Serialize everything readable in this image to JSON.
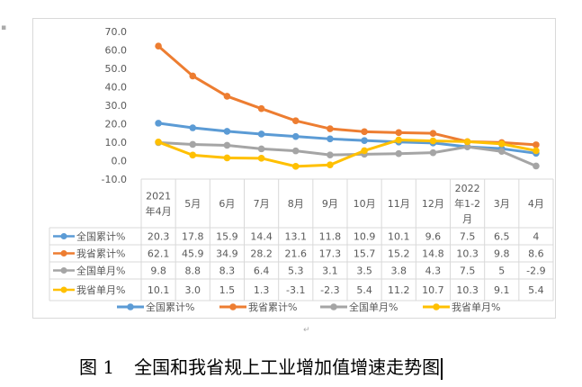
{
  "chart_data": {
    "type": "line",
    "title": "",
    "categories": [
      "2021年4月",
      "5月",
      "6月",
      "7月",
      "8月",
      "9月",
      "10月",
      "11月",
      "12月",
      "2022年1-2月",
      "3月",
      "4月"
    ],
    "category_lines": [
      [
        "2021",
        "年4月"
      ],
      [
        "5月"
      ],
      [
        "6月"
      ],
      [
        "7月"
      ],
      [
        "8月"
      ],
      [
        "9月"
      ],
      [
        "10月"
      ],
      [
        "11月"
      ],
      [
        "12月"
      ],
      [
        "2022",
        "年1-2",
        "月"
      ],
      [
        "3月"
      ],
      [
        "4月"
      ]
    ],
    "yticks": [
      "70.0",
      "60.0",
      "50.0",
      "40.0",
      "30.0",
      "20.0",
      "10.0",
      "0.0",
      "-10.0"
    ],
    "ylim": [
      -10,
      70
    ],
    "grid": false,
    "legend_position": "bottom",
    "series": [
      {
        "name": "全国累计%",
        "color": "#5B9BD5",
        "values": [
          20.3,
          17.8,
          15.9,
          14.4,
          13.1,
          11.8,
          10.9,
          10.1,
          9.6,
          7.5,
          6.5,
          4
        ],
        "labels": [
          "20.3",
          "17.8",
          "15.9",
          "14.4",
          "13.1",
          "11.8",
          "10.9",
          "10.1",
          "9.6",
          "7.5",
          "6.5",
          "4"
        ]
      },
      {
        "name": "我省累计%",
        "color": "#ED7D31",
        "values": [
          62.1,
          45.9,
          34.9,
          28.2,
          21.6,
          17.3,
          15.7,
          15.2,
          14.8,
          10.3,
          9.8,
          8.6
        ],
        "labels": [
          "62.1",
          "45.9",
          "34.9",
          "28.2",
          "21.6",
          "17.3",
          "15.7",
          "15.2",
          "14.8",
          "10.3",
          "9.8",
          "8.6"
        ]
      },
      {
        "name": "全国单月%",
        "color": "#A5A5A5",
        "values": [
          9.8,
          8.8,
          8.3,
          6.4,
          5.3,
          3.1,
          3.5,
          3.8,
          4.3,
          7.5,
          5,
          -2.9
        ],
        "labels": [
          "9.8",
          "8.8",
          "8.3",
          "6.4",
          "5.3",
          "3.1",
          "3.5",
          "3.8",
          "4.3",
          "7.5",
          "5",
          "-2.9"
        ]
      },
      {
        "name": "我省单月%",
        "color": "#FFC000",
        "values": [
          10.1,
          3.0,
          1.5,
          1.3,
          -3.1,
          -2.3,
          5.4,
          11.2,
          10.7,
          10.3,
          9.1,
          5.4
        ],
        "labels": [
          "10.1",
          "3.0",
          "1.5",
          "1.3",
          "-3.1",
          "-2.3",
          "5.4",
          "11.2",
          "10.7",
          "10.3",
          "9.1",
          "5.4"
        ]
      }
    ]
  },
  "caption": {
    "number": "图 1",
    "text": "全国和我省规上工业增加值增速走势图"
  }
}
